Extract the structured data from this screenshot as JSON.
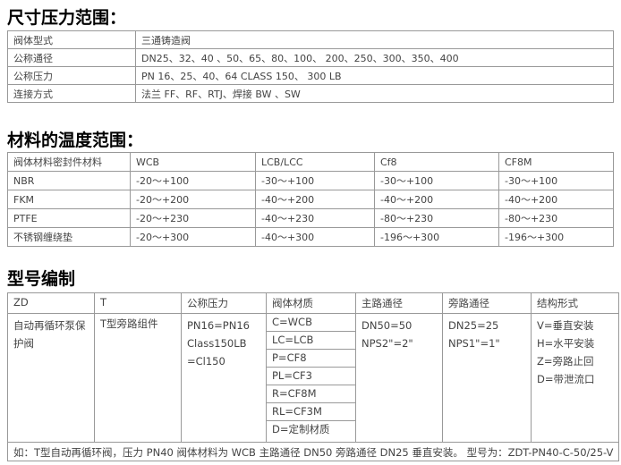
{
  "section1": {
    "title": "尺寸压力范围：",
    "rows": [
      [
        "阀体型式",
        "三通铸造阀"
      ],
      [
        "公称通径",
        "DN25、32、40 、50、65、80、100、 200、250、300、350、400"
      ],
      [
        "公称压力",
        "PN 16、25、40、64  CLASS  150、 300 LB"
      ],
      [
        "连接方式",
        "法兰 FF、RF、RTJ、焊接 BW 、SW"
      ]
    ]
  },
  "section2": {
    "title": "材料的温度范围：",
    "header": [
      "阀体材料密封件材料",
      "WCB",
      "LCB/LCC",
      "Cf8",
      "CF8M"
    ],
    "rows": [
      [
        "NBR",
        "-20～+100",
        "-30～+100",
        "-30～+100",
        "-30～+100"
      ],
      [
        "FKM",
        "-20～+200",
        "-40～+200",
        "-40～+200",
        "-40～+200"
      ],
      [
        "PTFE",
        "-20～+230",
        "-40～+230",
        "-80～+230",
        "-80～+230"
      ],
      [
        "不锈钢缠绕垫",
        "-20～+300",
        "-40～+300",
        "-196～+300",
        "-196～+300"
      ]
    ]
  },
  "section3": {
    "title": "型号编制",
    "header": [
      "ZD",
      "T",
      "公称压力",
      "阀体材质",
      "主路通径",
      "旁路通径",
      "结构形式"
    ],
    "col1": "自动再循环泵保护阀",
    "col2": "T型旁路组件",
    "pressure": [
      "PN16=PN16",
      "Class150LB",
      "=Cl150"
    ],
    "materials": [
      "C=WCB",
      "LC=LCB",
      "P=CF8",
      "PL=CF3",
      "R=CF8M",
      "RL=CF3M",
      "D=定制材质"
    ],
    "main": [
      "DN50=50",
      "NPS2\"=2\""
    ],
    "bypass": [
      "DN25=25",
      "NPS1\"=1\""
    ],
    "structure": [
      "V=垂直安装",
      "H=水平安装",
      "Z=旁路止回",
      "D=带泄流口"
    ],
    "example": "如：T型自动再循环阀，压力 PN40 阀体材料为 WCB 主路通径 DN50 旁路通径 DN25 垂直安装。 型号为：ZDT-PN40-C-50/25-V"
  }
}
